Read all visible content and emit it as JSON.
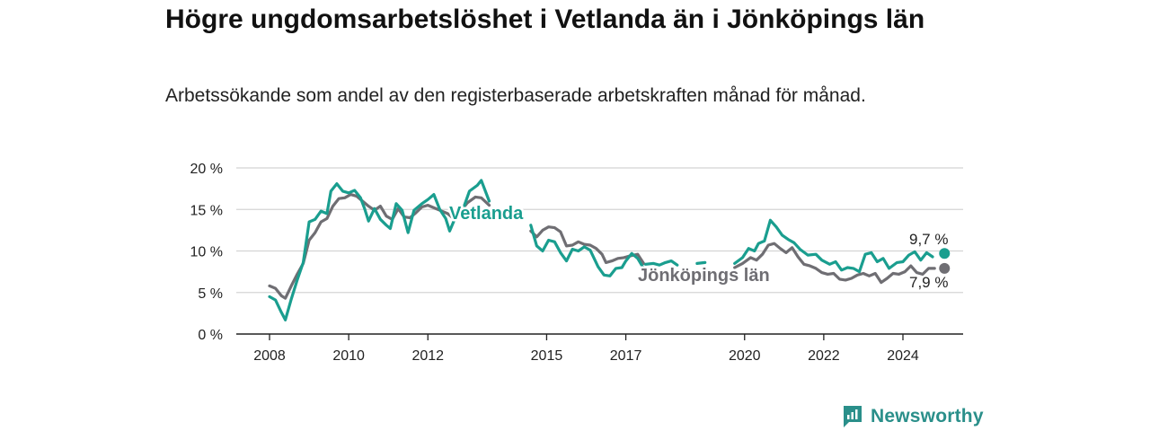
{
  "title": "Högre ungdomsarbetslöshet i Vetlanda än i Jönköpings län",
  "subtitle": "Arbetssökande som andel av den registerbaserade arbetskraften månad för månad.",
  "brand": "Newsworthy",
  "colors": {
    "vetlanda": "#1a9e8f",
    "lan": "#6f6e73",
    "grid": "#d4d4d4",
    "brand": "#2a8f8a"
  },
  "chart_data": {
    "type": "line",
    "ylim": [
      0,
      20
    ],
    "xlim": [
      2007.9,
      2025.6
    ],
    "y_ticks": [
      0,
      5,
      10,
      15,
      20
    ],
    "y_tick_labels": [
      "0 %",
      "5 %",
      "10 %",
      "15 %",
      "20 %"
    ],
    "x_ticks": [
      2008,
      2010,
      2012,
      2015,
      2017,
      2020,
      2022,
      2024
    ],
    "x_tick_labels": [
      "2008",
      "2010",
      "2012",
      "2015",
      "2017",
      "2020",
      "2022",
      "2024"
    ],
    "grid": true,
    "series": [
      {
        "name": "Vetlanda",
        "color": "#1a9e8f",
        "end_label": "9,7 %",
        "points": [
          [
            2008.0,
            4.5
          ],
          [
            2008.15,
            4.1
          ],
          [
            2008.3,
            2.6
          ],
          [
            2008.4,
            1.7
          ],
          [
            2008.55,
            4.2
          ],
          [
            2008.7,
            6.5
          ],
          [
            2008.85,
            8.6
          ],
          [
            2009.0,
            13.5
          ],
          [
            2009.15,
            13.8
          ],
          [
            2009.3,
            14.8
          ],
          [
            2009.45,
            14.5
          ],
          [
            2009.55,
            17.2
          ],
          [
            2009.7,
            18.1
          ],
          [
            2009.85,
            17.2
          ],
          [
            2010.0,
            17.0
          ],
          [
            2010.15,
            17.3
          ],
          [
            2010.3,
            16.4
          ],
          [
            2010.4,
            15.1
          ],
          [
            2010.5,
            13.6
          ],
          [
            2010.65,
            15.1
          ],
          [
            2010.8,
            13.8
          ],
          [
            2010.95,
            13.1
          ],
          [
            2011.05,
            12.7
          ],
          [
            2011.2,
            15.7
          ],
          [
            2011.35,
            14.9
          ],
          [
            2011.5,
            12.2
          ],
          [
            2011.65,
            14.9
          ],
          [
            2011.85,
            15.7
          ],
          [
            2012.0,
            16.2
          ],
          [
            2012.15,
            16.8
          ],
          [
            2012.3,
            15.0
          ],
          [
            2012.45,
            13.9
          ],
          [
            2012.55,
            12.4
          ],
          [
            2012.7,
            14.1
          ],
          [
            2012.9,
            15.2
          ],
          [
            2013.05,
            17.2
          ],
          [
            2013.25,
            17.9
          ],
          [
            2013.35,
            18.5
          ],
          [
            2013.55,
            16.0
          ],
          null,
          [
            2014.6,
            13.1
          ],
          [
            2014.75,
            10.6
          ],
          [
            2014.9,
            10.0
          ],
          [
            2015.05,
            11.3
          ],
          [
            2015.2,
            11.1
          ],
          [
            2015.35,
            9.8
          ],
          [
            2015.5,
            8.8
          ],
          [
            2015.65,
            10.2
          ],
          [
            2015.8,
            10.0
          ],
          [
            2015.95,
            10.5
          ],
          [
            2016.1,
            10.1
          ],
          [
            2016.3,
            8.1
          ],
          [
            2016.45,
            7.1
          ],
          [
            2016.6,
            7.0
          ],
          [
            2016.75,
            7.9
          ],
          [
            2016.9,
            8.0
          ],
          [
            2017.0,
            8.8
          ],
          [
            2017.15,
            9.7
          ],
          [
            2017.3,
            9.1
          ],
          [
            2017.45,
            7.9
          ],
          null,
          [
            2017.5,
            8.4
          ],
          [
            2017.7,
            8.5
          ],
          [
            2017.85,
            8.3
          ],
          [
            2018.0,
            8.6
          ],
          [
            2018.15,
            8.8
          ],
          [
            2018.3,
            8.3
          ],
          null,
          [
            2018.8,
            8.5
          ],
          [
            2019.0,
            8.6
          ],
          null,
          [
            2019.75,
            8.5
          ],
          [
            2019.95,
            9.2
          ],
          [
            2020.1,
            10.3
          ],
          [
            2020.25,
            10.0
          ],
          [
            2020.35,
            10.9
          ],
          [
            2020.5,
            11.2
          ],
          [
            2020.65,
            13.7
          ],
          [
            2020.8,
            12.9
          ],
          [
            2020.95,
            11.9
          ],
          [
            2021.1,
            11.4
          ],
          [
            2021.25,
            11.0
          ],
          [
            2021.4,
            10.2
          ],
          [
            2021.6,
            9.5
          ],
          [
            2021.8,
            9.6
          ],
          [
            2021.95,
            8.9
          ],
          [
            2022.15,
            8.4
          ],
          [
            2022.3,
            8.7
          ],
          [
            2022.45,
            7.7
          ],
          [
            2022.6,
            8.0
          ],
          [
            2022.75,
            7.9
          ],
          [
            2022.9,
            7.5
          ],
          [
            2023.05,
            9.6
          ],
          [
            2023.2,
            9.8
          ],
          [
            2023.35,
            8.7
          ],
          [
            2023.5,
            9.1
          ],
          [
            2023.65,
            7.9
          ],
          [
            2023.85,
            8.6
          ],
          [
            2024.0,
            8.7
          ],
          [
            2024.15,
            9.5
          ],
          [
            2024.3,
            9.9
          ],
          [
            2024.45,
            8.9
          ],
          [
            2024.6,
            9.8
          ],
          [
            2024.75,
            9.3
          ]
        ],
        "end_point": [
          2025.05,
          9.7
        ]
      },
      {
        "name": "Jönköpings län",
        "color": "#6f6e73",
        "end_label": "7,9 %",
        "points": [
          [
            2008.0,
            5.8
          ],
          [
            2008.15,
            5.5
          ],
          [
            2008.3,
            4.6
          ],
          [
            2008.4,
            4.3
          ],
          [
            2008.55,
            5.8
          ],
          [
            2008.7,
            7.2
          ],
          [
            2008.85,
            8.5
          ],
          [
            2009.0,
            11.3
          ],
          [
            2009.15,
            12.2
          ],
          [
            2009.3,
            13.5
          ],
          [
            2009.45,
            13.9
          ],
          [
            2009.6,
            15.4
          ],
          [
            2009.75,
            16.3
          ],
          [
            2009.9,
            16.4
          ],
          [
            2010.05,
            16.8
          ],
          [
            2010.2,
            16.6
          ],
          [
            2010.35,
            16.0
          ],
          [
            2010.5,
            15.4
          ],
          [
            2010.65,
            14.9
          ],
          [
            2010.8,
            15.4
          ],
          [
            2010.95,
            14.2
          ],
          [
            2011.1,
            13.8
          ],
          [
            2011.25,
            15.1
          ],
          [
            2011.4,
            14.1
          ],
          [
            2011.55,
            14.0
          ],
          [
            2011.7,
            14.6
          ],
          [
            2011.85,
            15.3
          ],
          [
            2012.0,
            15.5
          ],
          [
            2012.15,
            15.2
          ],
          [
            2012.3,
            14.9
          ],
          [
            2012.5,
            14.5
          ],
          [
            2012.65,
            13.9
          ],
          [
            2012.8,
            14.6
          ],
          [
            2013.0,
            15.8
          ],
          [
            2013.2,
            16.5
          ],
          [
            2013.35,
            16.4
          ],
          [
            2013.55,
            15.5
          ],
          null,
          [
            2014.6,
            12.4
          ],
          [
            2014.75,
            11.7
          ],
          [
            2014.9,
            12.5
          ],
          [
            2015.05,
            12.9
          ],
          [
            2015.2,
            12.8
          ],
          [
            2015.35,
            12.3
          ],
          [
            2015.5,
            10.6
          ],
          [
            2015.65,
            10.7
          ],
          [
            2015.8,
            11.1
          ],
          [
            2015.95,
            10.8
          ],
          [
            2016.1,
            10.7
          ],
          [
            2016.25,
            10.3
          ],
          [
            2016.4,
            9.6
          ],
          [
            2016.5,
            8.6
          ],
          [
            2016.65,
            8.8
          ],
          [
            2016.8,
            9.1
          ],
          [
            2016.95,
            9.2
          ],
          [
            2017.1,
            9.4
          ],
          [
            2017.3,
            9.6
          ],
          [
            2017.45,
            8.5
          ],
          null,
          [
            2019.75,
            8.0
          ],
          [
            2019.95,
            8.5
          ],
          [
            2020.15,
            9.2
          ],
          [
            2020.3,
            8.9
          ],
          [
            2020.45,
            9.6
          ],
          [
            2020.6,
            10.7
          ],
          [
            2020.75,
            10.9
          ],
          [
            2020.9,
            10.3
          ],
          [
            2021.05,
            9.8
          ],
          [
            2021.2,
            10.4
          ],
          [
            2021.35,
            9.3
          ],
          [
            2021.5,
            8.4
          ],
          [
            2021.65,
            8.2
          ],
          [
            2021.8,
            7.9
          ],
          [
            2021.95,
            7.4
          ],
          [
            2022.1,
            7.2
          ],
          [
            2022.25,
            7.3
          ],
          [
            2022.4,
            6.6
          ],
          [
            2022.55,
            6.5
          ],
          [
            2022.7,
            6.7
          ],
          [
            2022.85,
            7.1
          ],
          [
            2023.0,
            7.3
          ],
          [
            2023.15,
            7.0
          ],
          [
            2023.3,
            7.3
          ],
          [
            2023.45,
            6.2
          ],
          [
            2023.6,
            6.7
          ],
          [
            2023.75,
            7.3
          ],
          [
            2023.9,
            7.2
          ],
          [
            2024.05,
            7.5
          ],
          [
            2024.2,
            8.2
          ],
          [
            2024.35,
            7.4
          ],
          [
            2024.5,
            7.2
          ],
          [
            2024.65,
            7.9
          ],
          [
            2024.8,
            7.9
          ]
        ],
        "end_point": [
          2025.05,
          7.9
        ]
      }
    ],
    "annotations": [
      {
        "text": "Vetlanda",
        "series": "Vetlanda"
      },
      {
        "text": "Jönköpings län",
        "series": "Jönköpings län"
      }
    ]
  }
}
